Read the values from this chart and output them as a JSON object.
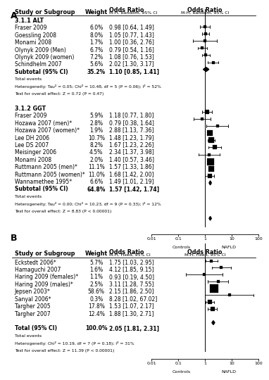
{
  "panel_A": {
    "section1_title": "3.1.1 ALT",
    "section1_studies": [
      {
        "name": "Fraser 2009",
        "weight": "6.0%",
        "or": 0.98,
        "lo": 0.64,
        "hi": 1.49
      },
      {
        "name": "Goessling 2008",
        "weight": "8.0%",
        "or": 1.05,
        "lo": 0.77,
        "hi": 1.43
      },
      {
        "name": "Monami 2008",
        "weight": "1.7%",
        "or": 1.0,
        "lo": 0.36,
        "hi": 2.76
      },
      {
        "name": "Olynyk 2009 (Men)",
        "weight": "6.7%",
        "or": 0.79,
        "lo": 0.54,
        "hi": 1.16
      },
      {
        "name": "Olynyk 2009 (women)",
        "weight": "7.2%",
        "or": 1.08,
        "lo": 0.76,
        "hi": 1.53
      },
      {
        "name": "Schindhelm 2007",
        "weight": "5.6%",
        "or": 2.02,
        "lo": 1.3,
        "hi": 3.17
      }
    ],
    "section1_subtotal": {
      "weight": "35.2%",
      "or": 1.1,
      "lo": 0.85,
      "hi": 1.41
    },
    "section1_hetero": "Heterogeneity: Tau² = 0.05; Chi² = 10.48, df = 5 (P = 0.06); I² = 52%",
    "section1_test": "Test for overall effect: Z = 0.72 (P = 0.47)",
    "section2_title": "3.1.2 GGT",
    "section2_studies": [
      {
        "name": "Fraser 2009",
        "weight": "5.9%",
        "or": 1.18,
        "lo": 0.77,
        "hi": 1.8
      },
      {
        "name": "Hozawa 2007 (men)*",
        "weight": "2.8%",
        "or": 0.79,
        "lo": 0.38,
        "hi": 1.64
      },
      {
        "name": "Hozawa 2007 (women)*",
        "weight": "1.9%",
        "or": 2.88,
        "lo": 1.13,
        "hi": 7.36
      },
      {
        "name": "Lee DH 2006",
        "weight": "10.7%",
        "or": 1.48,
        "lo": 1.23,
        "hi": 1.79
      },
      {
        "name": "Lee DS 2007",
        "weight": "8.2%",
        "or": 1.67,
        "lo": 1.23,
        "hi": 2.26
      },
      {
        "name": "Meisinger 2006",
        "weight": "4.5%",
        "or": 2.34,
        "lo": 1.37,
        "hi": 3.98
      },
      {
        "name": "Monami 2008",
        "weight": "2.0%",
        "or": 1.4,
        "lo": 0.57,
        "hi": 3.46
      },
      {
        "name": "Ruttmann 2005 (men)*",
        "weight": "11.1%",
        "or": 1.57,
        "lo": 1.33,
        "hi": 1.86
      },
      {
        "name": "Ruttmann 2005 (women)*",
        "weight": "11.0%",
        "or": 1.68,
        "lo": 1.42,
        "hi": 2.0
      },
      {
        "name": "Wannamethee 1995*",
        "weight": "6.6%",
        "or": 1.49,
        "lo": 1.01,
        "hi": 2.19
      }
    ],
    "section2_subtotal": {
      "weight": "64.8%",
      "or": 1.57,
      "lo": 1.42,
      "hi": 1.74
    },
    "section2_hetero": "Heterogeneity: Tau² = 0.00; Chi² = 10.23, df = 9 (P = 0.33); I² = 12%",
    "section2_test": "Test for overall effect: Z = 8.83 (P < 0.00001)",
    "method": "M-H, Random, 95% CI"
  },
  "panel_B": {
    "studies": [
      {
        "name": "Eckstedt 2006*",
        "weight": "5.7%",
        "or": 1.75,
        "lo": 1.03,
        "hi": 2.95
      },
      {
        "name": "Hamaguchi 2007",
        "weight": "1.6%",
        "or": 4.12,
        "lo": 1.85,
        "hi": 9.15
      },
      {
        "name": "Haring 2009 (females)*",
        "weight": "1.1%",
        "or": 0.93,
        "lo": 0.19,
        "hi": 4.5
      },
      {
        "name": "Haring 2009 (males)*",
        "weight": "2.5%",
        "or": 3.11,
        "lo": 1.28,
        "hi": 7.55
      },
      {
        "name": "Jepsen 2003*",
        "weight": "58.6%",
        "or": 2.15,
        "lo": 1.86,
        "hi": 2.5
      },
      {
        "name": "Sanyal 2006*",
        "weight": "0.3%",
        "or": 8.28,
        "lo": 1.02,
        "hi": 67.02
      },
      {
        "name": "Targher 2005",
        "weight": "17.8%",
        "or": 1.53,
        "lo": 1.07,
        "hi": 2.17
      },
      {
        "name": "Targher 2007",
        "weight": "12.4%",
        "or": 1.88,
        "lo": 1.3,
        "hi": 2.71
      }
    ],
    "total": {
      "weight": "100.0%",
      "or": 2.05,
      "lo": 1.81,
      "hi": 2.31
    },
    "hetero": "Heterogeneity: Chi² = 10.19, df = 7 (P = 0.18); I² = 31%",
    "test": "Test for overall effect: Z = 11.39 (P < 0.00001)",
    "method": "M-H, Fixed, 95% CI"
  },
  "xmin": 0.01,
  "xmax": 100,
  "xticks": [
    0.01,
    0.1,
    1,
    10,
    100
  ],
  "xtick_labels": [
    "0.01",
    "0.1",
    "1",
    "10",
    "100"
  ],
  "xlabel_left": "Controls",
  "xlabel_right": "NAFLD",
  "fs": 5.5,
  "fs_sm": 4.5,
  "fs_hd": 5.8,
  "fs_bold_sec": 5.8
}
